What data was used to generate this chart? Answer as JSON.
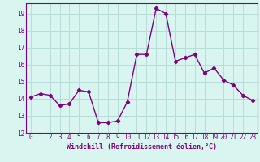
{
  "x": [
    0,
    1,
    2,
    3,
    4,
    5,
    6,
    7,
    8,
    9,
    10,
    11,
    12,
    13,
    14,
    15,
    16,
    17,
    18,
    19,
    20,
    21,
    22,
    23
  ],
  "y": [
    14.1,
    14.3,
    14.2,
    13.6,
    13.7,
    14.5,
    14.4,
    12.6,
    12.6,
    12.7,
    13.8,
    16.6,
    16.6,
    19.3,
    19.0,
    16.2,
    16.4,
    16.6,
    15.5,
    15.8,
    15.1,
    14.8,
    14.2,
    13.9
  ],
  "line_color": "#800080",
  "marker": "D",
  "marker_size": 2.2,
  "line_width": 1.0,
  "bg_color": "#d8f5f0",
  "grid_color": "#b8ddd8",
  "xlabel": "Windchill (Refroidissement éolien,°C)",
  "xlabel_fontsize": 6.0,
  "tick_fontsize": 5.5,
  "xlim": [
    -0.5,
    23.5
  ],
  "ylim": [
    12,
    19.6
  ],
  "yticks": [
    12,
    13,
    14,
    15,
    16,
    17,
    18,
    19
  ],
  "xticks": [
    0,
    1,
    2,
    3,
    4,
    5,
    6,
    7,
    8,
    9,
    10,
    11,
    12,
    13,
    14,
    15,
    16,
    17,
    18,
    19,
    20,
    21,
    22,
    23
  ]
}
